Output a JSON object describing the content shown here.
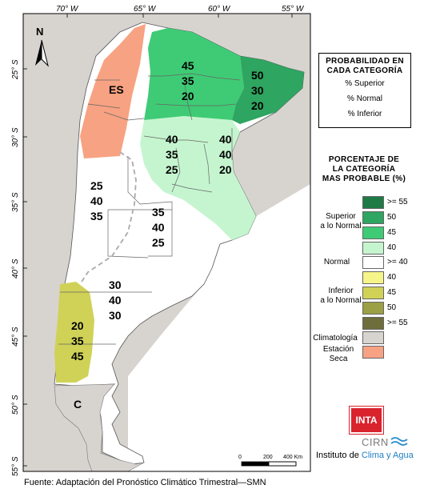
{
  "axes": {
    "lon_ticks": [
      "70° W",
      "65° W",
      "60° W",
      "55° W"
    ],
    "lat_ticks": [
      "25° S",
      "30° S",
      "35° S",
      "40° S",
      "45° S",
      "50° S",
      "55° S"
    ]
  },
  "north_label": "N",
  "regions": [
    {
      "id": "nea-north",
      "superior": "45",
      "normal": "35",
      "inferior": "20"
    },
    {
      "id": "misiones",
      "superior": "50",
      "normal": "30",
      "inferior": "20"
    },
    {
      "id": "pampa-centro",
      "superior": "40",
      "normal": "35",
      "inferior": "25"
    },
    {
      "id": "litoral",
      "superior": "40",
      "normal": "40",
      "inferior": "20"
    },
    {
      "id": "cuyo",
      "superior": "25",
      "normal": "40",
      "inferior": "35"
    },
    {
      "id": "pampa-sur",
      "superior": "35",
      "normal": "40",
      "inferior": "25"
    },
    {
      "id": "patagonia-norte",
      "superior": "30",
      "normal": "40",
      "inferior": "30"
    },
    {
      "id": "patagonia-oeste",
      "superior": "20",
      "normal": "35",
      "inferior": "45"
    }
  ],
  "special_labels": {
    "dry_season": "ES",
    "climatology": "C"
  },
  "info_box": {
    "title_line1": "PROBABILIDAD EN",
    "title_line2": "CADA CATEGORÍA",
    "row_superior": "% Superior",
    "row_normal": "% Normal",
    "row_inferior": "% Inferior"
  },
  "legend": {
    "title_line1": "PORCENTAJE DE",
    "title_line2": "LA CATEGORÍA",
    "title_line3": "MAS PROBABLE (%)",
    "superior_label_line1": "Superior",
    "superior_label_line2": "a lo Normal",
    "normal_label": "Normal",
    "inferior_label_line1": "Inferior",
    "inferior_label_line2": "a lo Normal",
    "climatology_label": "Climatología",
    "dry_label_line1": "Estación",
    "dry_label_line2": "Seca",
    "superior_levels": [
      {
        "label": ">= 55",
        "color": "#1e7b45"
      },
      {
        "label": "50",
        "color": "#2ea560"
      },
      {
        "label": "45",
        "color": "#3fcb75"
      },
      {
        "label": "40",
        "color": "#c5f5cf"
      }
    ],
    "normal_level": {
      "label": ">= 40",
      "color": "#ffffff"
    },
    "inferior_levels": [
      {
        "label": "40",
        "color": "#f5f58a"
      },
      {
        "label": "45",
        "color": "#cfd257"
      },
      {
        "label": "50",
        "color": "#9aa043"
      },
      {
        "label": ">= 55",
        "color": "#6e6e3c"
      }
    ],
    "climatology_color": "#d7d4d0",
    "dry_color": "#f7a282"
  },
  "scalebar": {
    "label_0": "0",
    "label_200": "200",
    "label_400": "400 Km"
  },
  "logo": {
    "inta": "INTA",
    "cirn": "CIRN",
    "institute_prefix": "Instituto de ",
    "institute_highlight": "Clima y Agua"
  },
  "source": "Fuente: Adaptación del Pronóstico Climático Trimestral—SMN"
}
